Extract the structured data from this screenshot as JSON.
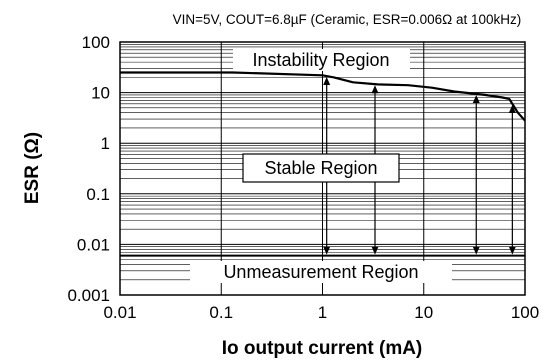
{
  "chart_data": {
    "type": "line",
    "conditions": "VIN=5V, COUT=6.8µF (Ceramic, ESR=0.006Ω at 100kHz)",
    "xlabel": "Io output current (mA)",
    "ylabel": "ESR (Ω)",
    "x_scale": "log",
    "y_scale": "log",
    "xlim": [
      0.01,
      100
    ],
    "ylim": [
      0.001,
      100
    ],
    "x_ticks": [
      "0.01",
      "0.1",
      "1",
      "10",
      "100"
    ],
    "y_ticks": [
      "100",
      "10",
      "1",
      "0.1",
      "0.01",
      "0.001"
    ],
    "grid": true,
    "region_labels": {
      "top": "Instability Region",
      "middle": "Stable Region",
      "bottom": "Unmeasurement Region"
    },
    "stability_boundary": {
      "x": [
        0.01,
        0.13,
        1.0,
        1.3,
        2.0,
        3.5,
        7.0,
        12,
        20,
        40,
        60,
        70,
        85,
        100
      ],
      "y": [
        25,
        25,
        22,
        20,
        16,
        14.5,
        14,
        12.5,
        10.5,
        9,
        8,
        7.5,
        4,
        2.8
      ]
    },
    "measurement_lower_limit_esr": 0.006,
    "measured_currents": [
      1.1,
      3.3,
      33,
      75
    ],
    "arrow_bottom_esr": 0.006
  }
}
